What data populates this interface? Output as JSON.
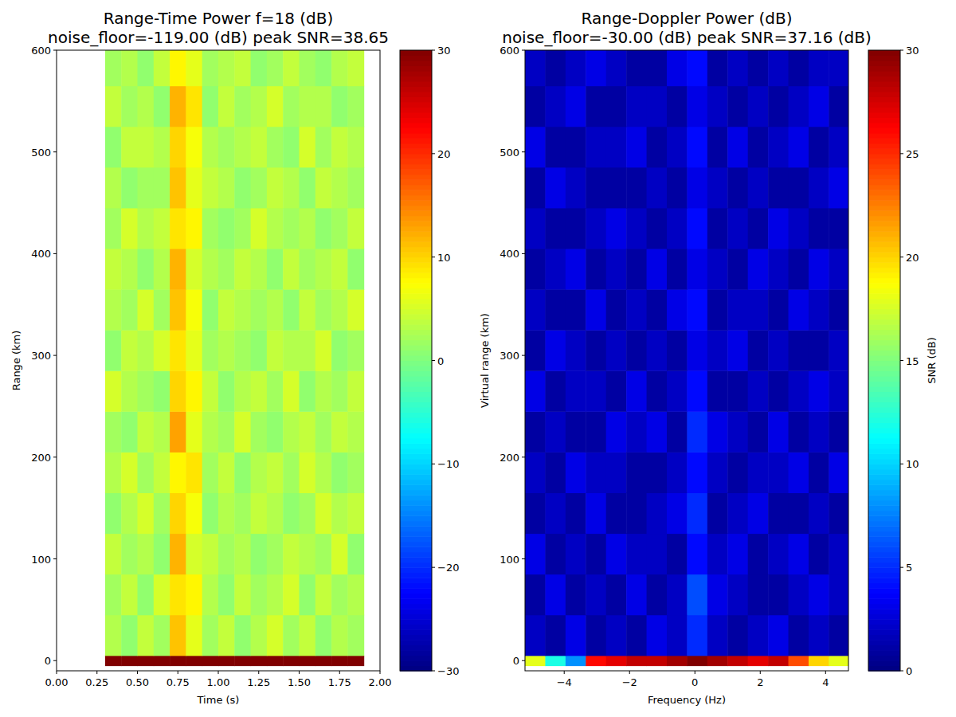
{
  "chart_data": [
    {
      "type": "heatmap",
      "title": "Range-Time Power f=18 (dB)\nnoise_floor=-119.00 (dB) peak SNR=38.65",
      "x_label": "Time (s)",
      "y_label": "Range (km)",
      "xlim": [
        0,
        2
      ],
      "ylim": [
        -10,
        600
      ],
      "xticks": [
        {
          "value": 0,
          "label": "0.00"
        },
        {
          "value": 0.25,
          "label": "0.25"
        },
        {
          "value": 0.5,
          "label": "0.50"
        },
        {
          "value": 0.75,
          "label": "0.75"
        },
        {
          "value": 1,
          "label": "1.00"
        },
        {
          "value": 1.25,
          "label": "1.25"
        },
        {
          "value": 1.5,
          "label": "1.50"
        },
        {
          "value": 1.75,
          "label": "1.75"
        },
        {
          "value": 2,
          "label": "2.00"
        }
      ],
      "yticks": [
        0,
        100,
        200,
        300,
        400,
        500,
        600
      ],
      "x_edges": [
        0.3,
        0.4,
        0.5,
        0.6,
        0.7,
        0.8,
        0.9,
        1.0,
        1.1,
        1.2,
        1.3,
        1.4,
        1.5,
        1.6,
        1.7,
        1.8,
        1.9
      ],
      "y_edges": [
        -5,
        5,
        45,
        85,
        125,
        165,
        205,
        245,
        285,
        325,
        365,
        405,
        445,
        485,
        525,
        565,
        600
      ],
      "cells": [
        [
          30,
          30,
          30,
          30,
          30,
          30,
          30,
          30,
          30,
          30,
          30,
          30,
          30,
          30,
          30,
          30
        ],
        [
          3,
          1,
          4,
          2,
          11,
          6,
          2,
          4,
          1,
          3,
          5,
          2,
          4,
          1,
          3,
          2
        ],
        [
          2,
          4,
          1,
          5,
          9,
          8,
          3,
          1,
          4,
          2,
          3,
          5,
          1,
          4,
          2,
          3
        ],
        [
          4,
          2,
          3,
          1,
          12,
          5,
          4,
          2,
          3,
          1,
          2,
          4,
          3,
          2,
          5,
          1
        ],
        [
          1,
          3,
          5,
          2,
          10,
          7,
          1,
          3,
          2,
          4,
          3,
          1,
          2,
          5,
          3,
          4
        ],
        [
          3,
          5,
          2,
          4,
          8,
          9,
          2,
          4,
          1,
          3,
          4,
          2,
          5,
          3,
          1,
          2
        ],
        [
          2,
          1,
          4,
          3,
          13,
          6,
          3,
          2,
          5,
          2,
          1,
          3,
          4,
          2,
          4,
          3
        ],
        [
          5,
          3,
          2,
          1,
          10,
          8,
          4,
          1,
          3,
          4,
          2,
          5,
          1,
          3,
          2,
          4
        ],
        [
          1,
          4,
          3,
          5,
          9,
          6,
          2,
          3,
          2,
          1,
          4,
          3,
          3,
          5,
          1,
          2
        ],
        [
          3,
          2,
          5,
          2,
          11,
          7,
          1,
          4,
          3,
          2,
          3,
          1,
          4,
          2,
          3,
          5
        ],
        [
          4,
          3,
          1,
          3,
          12,
          5,
          3,
          2,
          4,
          3,
          1,
          4,
          2,
          3,
          4,
          1
        ],
        [
          2,
          5,
          3,
          4,
          9,
          8,
          2,
          1,
          2,
          5,
          3,
          2,
          3,
          1,
          2,
          4
        ],
        [
          3,
          1,
          2,
          2,
          11,
          6,
          4,
          3,
          1,
          2,
          4,
          3,
          1,
          4,
          3,
          2
        ],
        [
          1,
          4,
          4,
          3,
          10,
          7,
          3,
          2,
          3,
          4,
          2,
          1,
          5,
          2,
          4,
          3
        ],
        [
          4,
          2,
          3,
          1,
          12,
          9,
          1,
          4,
          2,
          3,
          5,
          2,
          3,
          3,
          1,
          2
        ],
        [
          2,
          3,
          1,
          4,
          8,
          6,
          2,
          3,
          4,
          1,
          2,
          4,
          2,
          1,
          3,
          4
        ]
      ],
      "colorbar_range": [
        -30,
        30
      ],
      "colorbar_ticks": [
        {
          "value": -30,
          "label": "−30"
        },
        {
          "value": -20,
          "label": "−20"
        },
        {
          "value": -10,
          "label": "−10"
        },
        0,
        10,
        20,
        30
      ]
    },
    {
      "type": "heatmap",
      "title": "Range-Doppler Power (dB)\nnoise_floor=-30.00 (dB) peak SNR=37.16 (dB)",
      "x_label": "Frequency (Hz)",
      "y_label": "Virtual range (km)",
      "xlim": [
        -5.2,
        4.7
      ],
      "ylim": [
        -10,
        600
      ],
      "xticks": [
        {
          "value": -4,
          "label": "−4"
        },
        {
          "value": -2,
          "label": "−2"
        },
        0,
        2,
        4
      ],
      "yticks": [
        0,
        100,
        200,
        300,
        400,
        500,
        600
      ],
      "x_edges": [
        -5.2,
        -4.58,
        -3.96,
        -3.34,
        -2.72,
        -2.1,
        -1.48,
        -0.86,
        -0.24,
        0.38,
        1.0,
        1.62,
        2.24,
        2.86,
        3.48,
        4.1,
        4.72
      ],
      "y_edges": [
        -5,
        5,
        45,
        85,
        125,
        165,
        205,
        245,
        285,
        325,
        365,
        405,
        445,
        485,
        525,
        565,
        600
      ],
      "cells": [
        [
          18,
          12,
          8,
          26,
          27,
          28,
          28,
          29,
          30,
          29,
          28,
          27,
          28,
          24,
          20,
          18
        ],
        [
          2,
          1,
          3,
          1,
          2,
          1,
          3,
          2,
          5,
          2,
          1,
          2,
          3,
          1,
          2,
          1
        ],
        [
          1,
          3,
          1,
          2,
          1,
          3,
          1,
          2,
          6,
          3,
          2,
          1,
          1,
          2,
          3,
          2
        ],
        [
          3,
          1,
          2,
          1,
          3,
          2,
          2,
          1,
          4,
          2,
          3,
          1,
          2,
          3,
          1,
          2
        ],
        [
          1,
          2,
          1,
          3,
          1,
          1,
          2,
          3,
          5,
          1,
          2,
          3,
          1,
          1,
          2,
          1
        ],
        [
          2,
          1,
          3,
          2,
          2,
          1,
          1,
          2,
          4,
          2,
          1,
          2,
          2,
          3,
          1,
          3
        ],
        [
          1,
          2,
          1,
          1,
          3,
          2,
          3,
          1,
          5,
          3,
          2,
          1,
          3,
          1,
          2,
          1
        ],
        [
          3,
          1,
          2,
          2,
          1,
          3,
          1,
          2,
          4,
          1,
          1,
          2,
          1,
          2,
          3,
          2
        ],
        [
          1,
          3,
          2,
          1,
          2,
          1,
          2,
          1,
          3,
          2,
          3,
          1,
          2,
          1,
          1,
          2
        ],
        [
          2,
          1,
          1,
          3,
          1,
          2,
          1,
          3,
          4,
          1,
          2,
          2,
          1,
          3,
          2,
          1
        ],
        [
          1,
          2,
          3,
          1,
          2,
          1,
          3,
          1,
          3,
          2,
          1,
          3,
          2,
          1,
          3,
          2
        ],
        [
          2,
          1,
          1,
          2,
          3,
          2,
          1,
          2,
          4,
          1,
          2,
          1,
          3,
          2,
          1,
          1
        ],
        [
          1,
          3,
          2,
          1,
          1,
          1,
          2,
          1,
          3,
          2,
          1,
          2,
          1,
          1,
          2,
          3
        ],
        [
          3,
          1,
          1,
          2,
          2,
          3,
          1,
          2,
          4,
          1,
          3,
          1,
          2,
          3,
          1,
          2
        ],
        [
          1,
          2,
          3,
          1,
          1,
          2,
          2,
          1,
          3,
          2,
          1,
          2,
          1,
          2,
          3,
          1
        ],
        [
          2,
          1,
          2,
          3,
          2,
          1,
          1,
          3,
          4,
          1,
          2,
          1,
          2,
          1,
          2,
          2
        ]
      ],
      "colorbar_range": [
        0,
        30
      ],
      "colorbar_ticks": [
        0,
        5,
        10,
        15,
        20,
        25,
        30
      ],
      "colorbar_label": "SNR (dB)"
    }
  ]
}
